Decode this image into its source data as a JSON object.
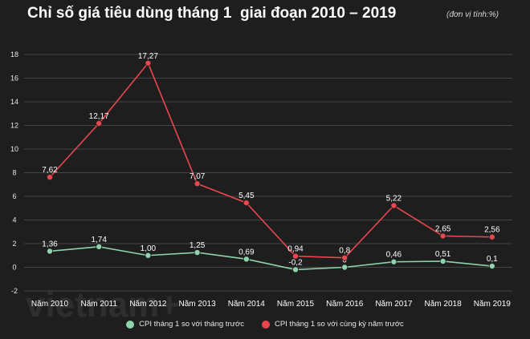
{
  "header": {
    "title": "Chỉ số giá tiêu dùng tháng 1  giai đoạn 2010 – 2019",
    "unit": "(đơn vị tính:%)"
  },
  "watermark": "vietnam+",
  "colors": {
    "series1": "#8fd3ae",
    "series2": "#e8474f",
    "grid": "#444444",
    "background": "#1e1e1e"
  },
  "chart_data": {
    "type": "line",
    "title": "Chỉ số giá tiêu dùng tháng 1  giai đoạn 2010 – 2019",
    "xlabel": "",
    "ylabel": "",
    "ylim": [
      -2,
      18
    ],
    "yticks": [
      -2,
      0,
      2,
      4,
      6,
      8,
      10,
      12,
      14,
      16,
      18
    ],
    "grid": true,
    "legend_position": "bottom",
    "categories": [
      "Năm 2010",
      "Năm 2011",
      "Năm 2012",
      "Năm 2013",
      "Năm 2014",
      "Năm 2015",
      "Năm 2016",
      "Năm 2017",
      "Năm 2018",
      "Năm 2019"
    ],
    "series": [
      {
        "name": "CPI tháng 1 so với tháng trước",
        "values": [
          1.36,
          1.74,
          1.0,
          1.25,
          0.69,
          -0.2,
          0,
          0.46,
          0.51,
          0.1
        ],
        "labels": [
          "1,36",
          "1,74",
          "1,00",
          "1,25",
          "0,69",
          "-0,2",
          "0",
          "0,46",
          "0,51",
          "0,1"
        ]
      },
      {
        "name": "CPI tháng 1 so với cùng kỳ năm trước",
        "values": [
          7.62,
          12.17,
          17.27,
          7.07,
          5.45,
          0.94,
          0.8,
          5.22,
          2.65,
          2.56
        ],
        "labels": [
          "7,62",
          "12,17",
          "17,27",
          "7,07",
          "5,45",
          "0,94",
          "0,8",
          "5,22",
          "2,65",
          "2,56"
        ]
      }
    ]
  }
}
